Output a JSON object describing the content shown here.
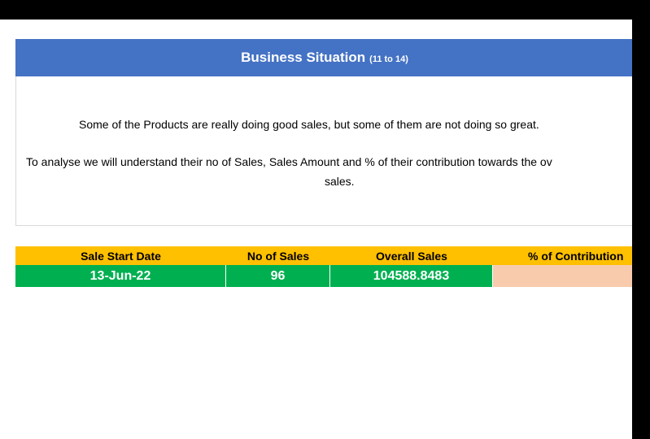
{
  "banner": {
    "title": "Business Situation",
    "subtitle": "(11 to 14)"
  },
  "description": {
    "line1": "Some of the Products are really doing good sales, but some of them are not doing so great.",
    "line2": "To analyse we will understand their no of Sales, Sales Amount and % of their contribution towards the ov",
    "line3": "sales."
  },
  "table": {
    "headers": {
      "sale_start_date": "Sale Start Date",
      "no_of_sales": "No of Sales",
      "overall_sales": "Overall Sales",
      "contribution": "% of Contribution"
    },
    "row": {
      "sale_start_date": "13-Jun-22",
      "no_of_sales": "96",
      "overall_sales": "104588.8483",
      "contribution": ""
    }
  },
  "colors": {
    "banner_bg": "#4472c4",
    "header_bg": "#ffc000",
    "value_bg": "#00b050",
    "contribution_bg": "#f8cbad"
  }
}
